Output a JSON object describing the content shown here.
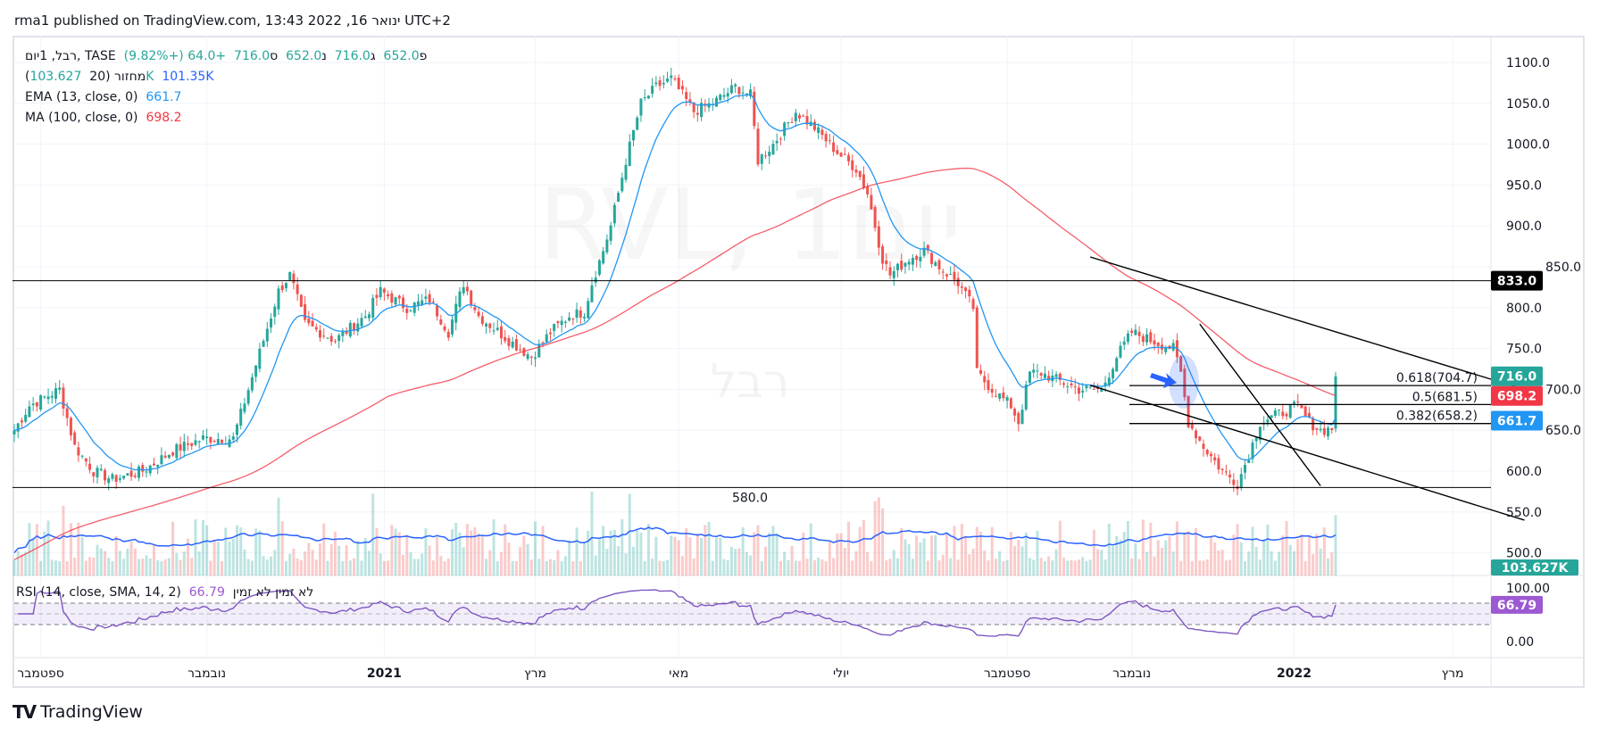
{
  "published": "rma1 published on TradingView.com, 13:43 2022 ,16 ינואר UTC+2",
  "legend": {
    "symbol": "רבל, 1יום",
    "exchange": "TASE",
    "open_label": "פ",
    "open": "652.0",
    "high_label": "ג",
    "high": "716.0",
    "low_label": "נ",
    "low": "652.0",
    "close_label": "ס",
    "close": "716.0",
    "change": "+64.0 (+9.82%)",
    "volume_label": "(מחזור (20",
    "volume": "103.627K",
    "volume_ma": "101.35K",
    "ema_label": "EMA (13, close, 0)",
    "ema": "661.7",
    "ma_label": "MA (100, close, 0)",
    "ma": "698.2",
    "rsi_label": "RSI (14, close, SMA, 14, 2)",
    "rsi": "66.79",
    "rsi_na": "לא זמין  לא זמין"
  },
  "watermark": {
    "main": "RVL, 1יום",
    "sub": "רבל"
  },
  "logo": "TradingView",
  "colors": {
    "up": "#26a69a",
    "down": "#ef5350",
    "ema": "#2196f3",
    "ma": "#f23645",
    "vol_ma": "#2962ff",
    "rsi": "#7e57c2"
  },
  "chart_data": {
    "type": "candlestick",
    "price_axis": {
      "ticks": [
        "1100.0",
        "1050.0",
        "1000.0",
        "950.0",
        "900.0",
        "850.0",
        "800.0",
        "750.0",
        "700.0",
        "650.0",
        "600.0",
        "550.0",
        "500.0"
      ],
      "range": [
        500,
        1100
      ]
    },
    "rsi_axis": {
      "ticks": [
        "100.00",
        "0.00"
      ],
      "bands": [
        70,
        50,
        30
      ]
    },
    "time_axis": [
      {
        "label": "ספטמבר",
        "day": 7
      },
      {
        "label": "נובמבר",
        "day": 51
      },
      {
        "label": "2021",
        "day": 98,
        "bold": true
      },
      {
        "label": "מרץ",
        "day": 138
      },
      {
        "label": "מאי",
        "day": 176
      },
      {
        "label": "יולי",
        "day": 219
      },
      {
        "label": "ספטמבר",
        "day": 263
      },
      {
        "label": "נובמבר",
        "day": 296
      },
      {
        "label": "2022",
        "day": 339,
        "bold": true
      },
      {
        "label": "מרץ",
        "day": 381
      }
    ],
    "total_days": 400,
    "close_keypoints": [
      [
        0,
        650
      ],
      [
        4,
        680
      ],
      [
        12,
        700
      ],
      [
        16,
        630
      ],
      [
        21,
        600
      ],
      [
        26,
        590
      ],
      [
        34,
        600
      ],
      [
        42,
        625
      ],
      [
        50,
        640
      ],
      [
        58,
        640
      ],
      [
        62,
        700
      ],
      [
        66,
        760
      ],
      [
        70,
        820
      ],
      [
        73,
        840
      ],
      [
        77,
        780
      ],
      [
        85,
        760
      ],
      [
        93,
        790
      ],
      [
        97,
        820
      ],
      [
        104,
        800
      ],
      [
        110,
        810
      ],
      [
        115,
        770
      ],
      [
        119,
        830
      ],
      [
        123,
        790
      ],
      [
        131,
        760
      ],
      [
        137,
        740
      ],
      [
        142,
        770
      ],
      [
        147,
        790
      ],
      [
        151,
        795
      ],
      [
        153,
        830
      ],
      [
        156,
        870
      ],
      [
        158,
        900
      ],
      [
        162,
        980
      ],
      [
        166,
        1050
      ],
      [
        170,
        1070
      ],
      [
        174,
        1080
      ],
      [
        180,
        1040
      ],
      [
        185,
        1050
      ],
      [
        191,
        1070
      ],
      [
        195,
        1060
      ],
      [
        197,
        980
      ],
      [
        201,
        1000
      ],
      [
        207,
        1040
      ],
      [
        212,
        1020
      ],
      [
        218,
        990
      ],
      [
        223,
        970
      ],
      [
        226,
        940
      ],
      [
        230,
        860
      ],
      [
        232,
        840
      ],
      [
        237,
        860
      ],
      [
        241,
        870
      ],
      [
        245,
        850
      ],
      [
        250,
        830
      ],
      [
        254,
        800
      ],
      [
        255,
        720
      ],
      [
        259,
        700
      ],
      [
        264,
        680
      ],
      [
        266,
        660
      ],
      [
        269,
        720
      ],
      [
        272,
        720
      ],
      [
        277,
        710
      ],
      [
        282,
        700
      ],
      [
        288,
        700
      ],
      [
        292,
        740
      ],
      [
        296,
        770
      ],
      [
        301,
        760
      ],
      [
        307,
        750
      ],
      [
        309,
        720
      ],
      [
        311,
        660
      ],
      [
        315,
        630
      ],
      [
        320,
        600
      ],
      [
        324,
        585
      ],
      [
        327,
        620
      ],
      [
        330,
        660
      ],
      [
        335,
        670
      ],
      [
        340,
        680
      ],
      [
        343,
        660
      ],
      [
        346,
        650
      ],
      [
        349,
        652
      ],
      [
        350,
        716
      ]
    ],
    "horizontal_levels": [
      {
        "price": 833.0,
        "tag": "833.0"
      },
      {
        "price": 580.0,
        "label": "580.0"
      }
    ],
    "fibonacci": [
      {
        "level": "0.618(704.7)",
        "price": 704.7
      },
      {
        "level": "0.5(681.5)",
        "price": 681.5
      },
      {
        "level": "0.382(658.2)",
        "price": 658.2
      }
    ],
    "trendlines": [
      {
        "from": [
          285,
          862
        ],
        "to": [
          400,
          700
        ]
      },
      {
        "from": [
          285,
          705
        ],
        "to": [
          400,
          540
        ]
      },
      {
        "from": [
          314,
          780
        ],
        "to": [
          346,
          582
        ]
      }
    ],
    "price_tags": [
      {
        "value": "716.0",
        "color": "#26a69a",
        "price": 716
      },
      {
        "value": "698.2",
        "color": "#f23645",
        "price": 698.2
      },
      {
        "value": "661.7",
        "color": "#2196f3",
        "price": 661.7
      }
    ],
    "volume_tag": "103.627K",
    "rsi_tag": "66.79"
  }
}
